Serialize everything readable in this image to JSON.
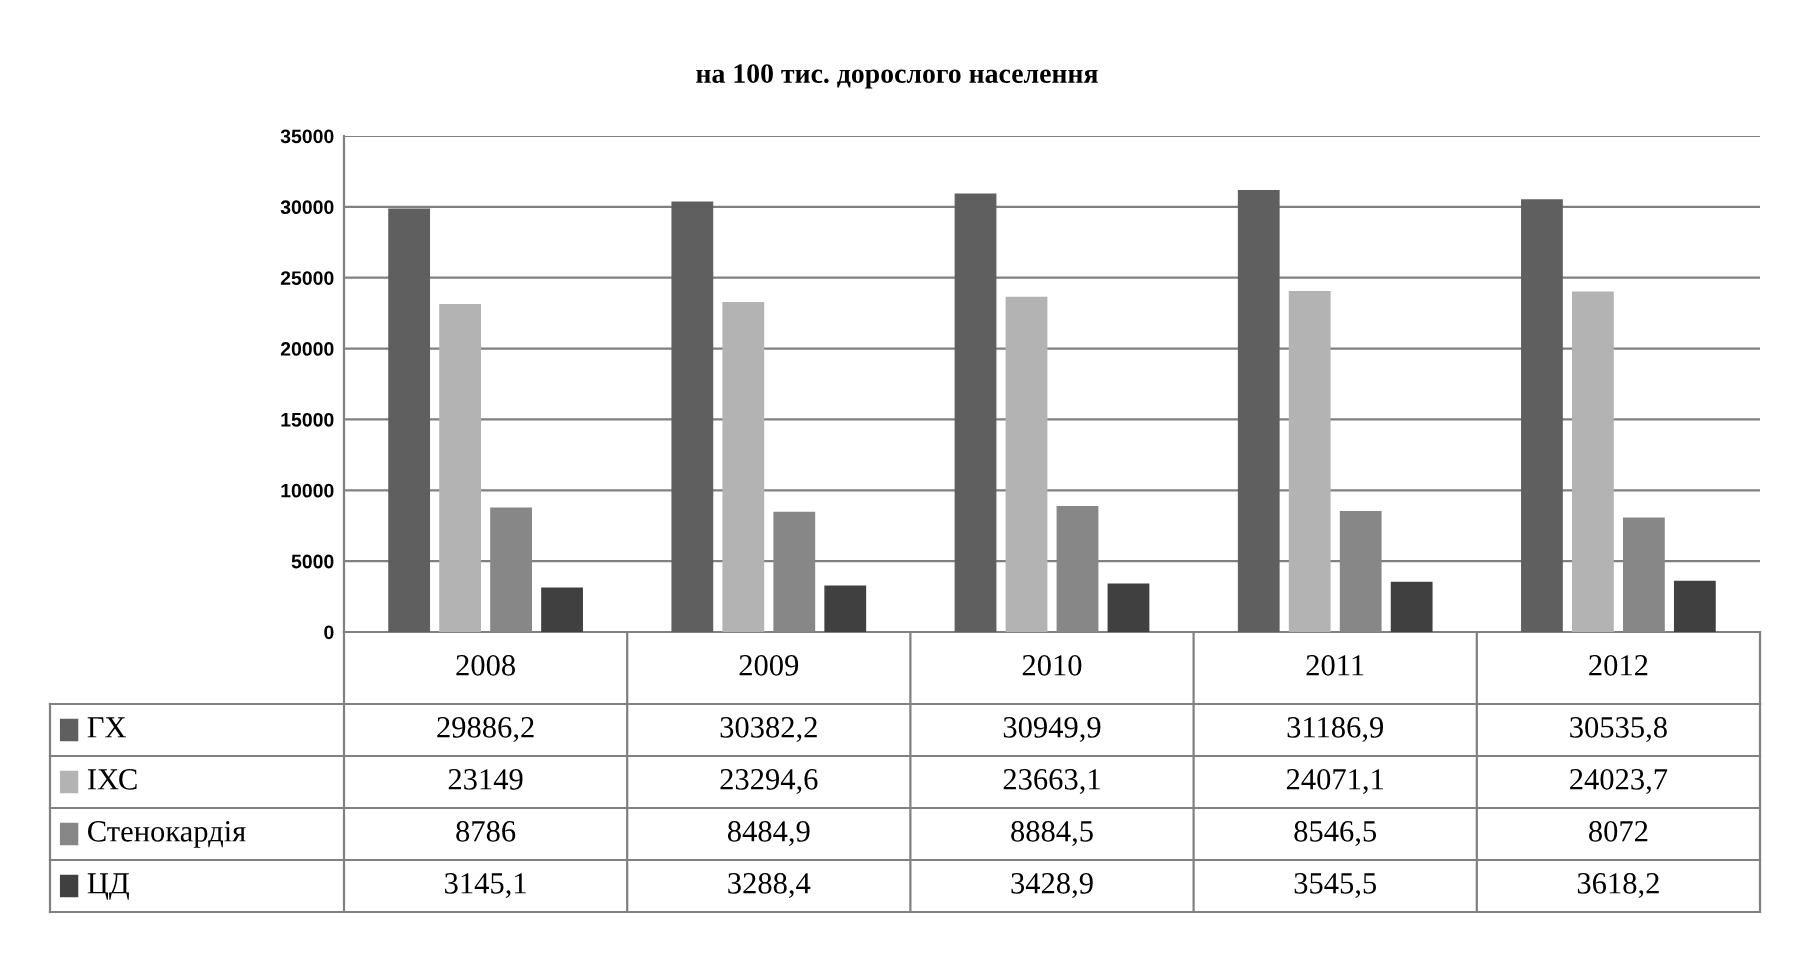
{
  "chart_data": {
    "type": "bar",
    "title": "на 100 тис. дорослого населення",
    "categories": [
      "2008",
      "2009",
      "2010",
      "2011",
      "2012"
    ],
    "series": [
      {
        "name": "ГХ",
        "color": "#5f5f5f",
        "values": [
          29886.2,
          30382.2,
          30949.9,
          31186.9,
          30535.8
        ],
        "value_labels": [
          "29886,2",
          "30382,2",
          "30949,9",
          "31186,9",
          "30535,8"
        ]
      },
      {
        "name": "ІХС",
        "color": "#b3b3b3",
        "values": [
          23149,
          23294.6,
          23663.1,
          24071.1,
          24023.7
        ],
        "value_labels": [
          "23149",
          "23294,6",
          "23663,1",
          "24071,1",
          "24023,7"
        ]
      },
      {
        "name": "Стенокардія",
        "color": "#878787",
        "values": [
          8786,
          8484.9,
          8884.5,
          8546.5,
          8072
        ],
        "value_labels": [
          "8786",
          "8484,9",
          "8884,5",
          "8546,5",
          "8072"
        ]
      },
      {
        "name": "ЦД",
        "color": "#404040",
        "values": [
          3145.1,
          3288.4,
          3428.9,
          3545.5,
          3618.2
        ],
        "value_labels": [
          "3145,1",
          "3288,4",
          "3428,9",
          "3545,5",
          "3618,2"
        ]
      }
    ],
    "ylim": [
      0,
      35000
    ],
    "yticks": [
      0,
      5000,
      10000,
      15000,
      20000,
      25000,
      30000,
      35000
    ],
    "grid": "y",
    "legend": "bottom"
  }
}
